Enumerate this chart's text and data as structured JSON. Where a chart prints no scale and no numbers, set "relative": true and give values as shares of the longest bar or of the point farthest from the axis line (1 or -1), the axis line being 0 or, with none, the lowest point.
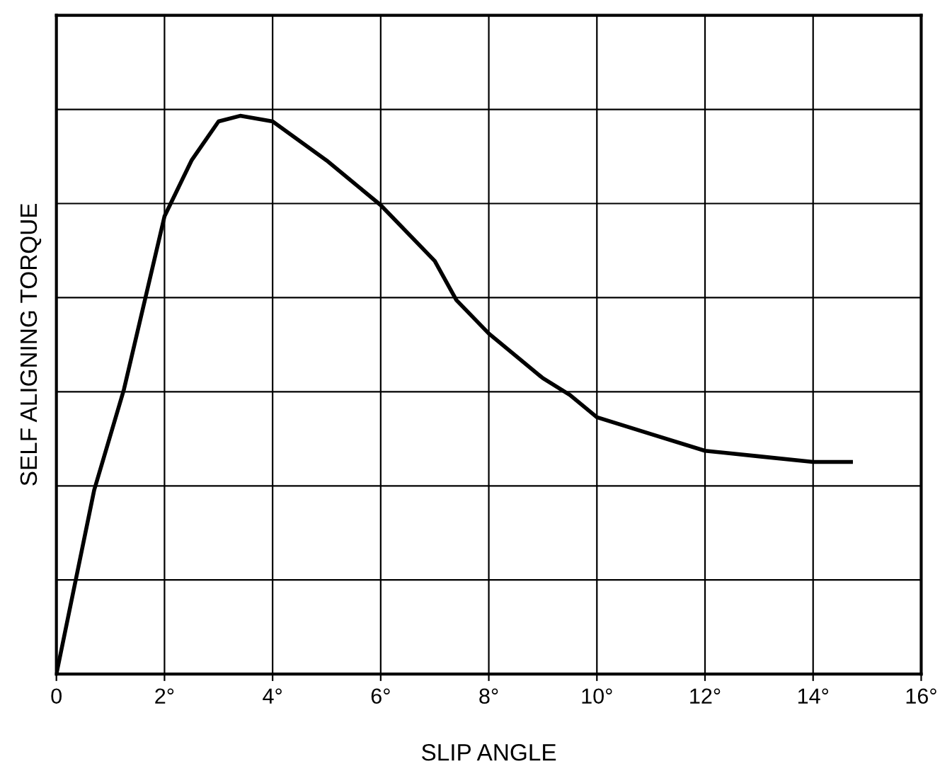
{
  "chart_data": {
    "type": "line",
    "xlabel": "SLIP ANGLE",
    "ylabel": "SELF ALIGNING TORQUE",
    "relative": true,
    "xlim": [
      0,
      16
    ],
    "xticks": [
      0,
      {
        "value": 2,
        "label": "2°"
      },
      {
        "value": 4,
        "label": "4°"
      },
      {
        "value": 6,
        "label": "6°"
      },
      {
        "value": 8,
        "label": "8°"
      },
      {
        "value": 10,
        "label": "10°"
      },
      {
        "value": 12,
        "label": "12°"
      },
      {
        "value": 14,
        "label": "14°"
      },
      {
        "value": 16,
        "label": "16°"
      }
    ],
    "grid": true,
    "marker": "none",
    "line_style": "solid",
    "series": [
      {
        "color": "#000000",
        "x": [
          0,
          0.7,
          1.25,
          2,
          2.5,
          3,
          3.4,
          4,
          5,
          6,
          7,
          7.4,
          8,
          9,
          9.5,
          10,
          11,
          12,
          13,
          14,
          14.7
        ],
        "values": [
          0,
          0.33,
          0.51,
          0.82,
          0.92,
          0.99,
          1,
          0.99,
          0.92,
          0.84,
          0.74,
          0.67,
          0.61,
          0.53,
          0.5,
          0.46,
          0.43,
          0.4,
          0.39,
          0.38,
          0.38
        ]
      }
    ]
  }
}
